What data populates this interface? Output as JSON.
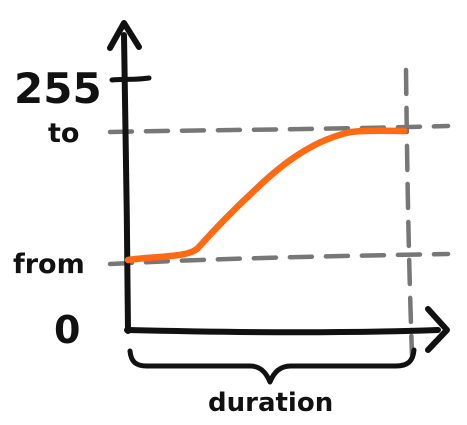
{
  "diagram": {
    "axis_labels": {
      "max": "255",
      "to": "to",
      "from": "from",
      "zero": "0",
      "duration": "duration"
    },
    "colors": {
      "curve": "#ff6a13",
      "axis": "#111111",
      "guide": "#777777"
    }
  }
}
